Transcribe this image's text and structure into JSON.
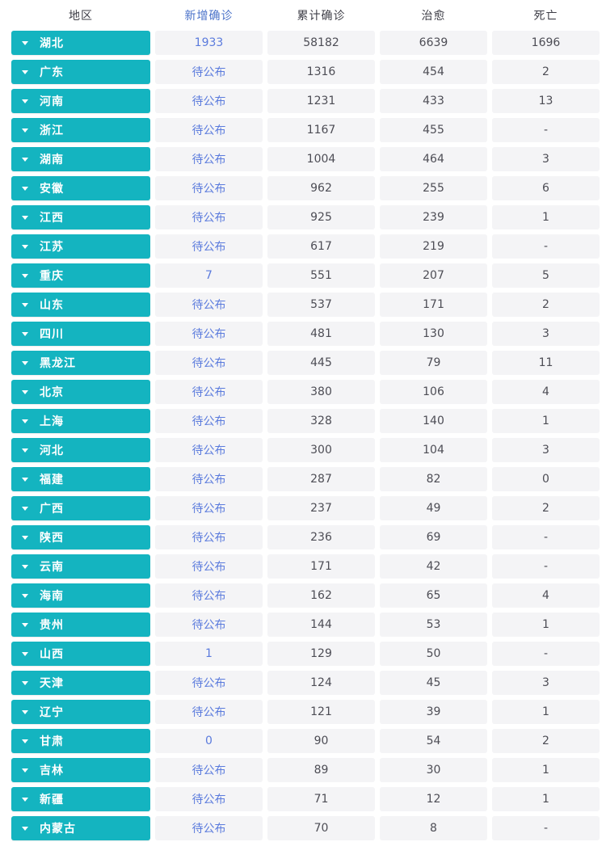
{
  "colors": {
    "region_button_teal": "#14b4c0",
    "cell_background": "#f4f4f6",
    "value_text_gray": "#4d4d55",
    "new_confirmed_blue": "#5b7bdd",
    "active_header_blue": "#4a72c9",
    "header_text": "#3d3d46"
  },
  "table": {
    "columns": [
      {
        "key": "region",
        "label": "地区"
      },
      {
        "key": "new_confirmed",
        "label": "新增确诊"
      },
      {
        "key": "cumulative_confirmed",
        "label": "累计确诊"
      },
      {
        "key": "cured",
        "label": "治愈"
      },
      {
        "key": "deaths",
        "label": "死亡"
      }
    ],
    "pending_label": "待公布",
    "rows": [
      {
        "region": "湖北",
        "new_confirmed": "1933",
        "cumulative_confirmed": "58182",
        "cured": "6639",
        "deaths": "1696"
      },
      {
        "region": "广东",
        "new_confirmed": "待公布",
        "cumulative_confirmed": "1316",
        "cured": "454",
        "deaths": "2"
      },
      {
        "region": "河南",
        "new_confirmed": "待公布",
        "cumulative_confirmed": "1231",
        "cured": "433",
        "deaths": "13"
      },
      {
        "region": "浙江",
        "new_confirmed": "待公布",
        "cumulative_confirmed": "1167",
        "cured": "455",
        "deaths": "-"
      },
      {
        "region": "湖南",
        "new_confirmed": "待公布",
        "cumulative_confirmed": "1004",
        "cured": "464",
        "deaths": "3"
      },
      {
        "region": "安徽",
        "new_confirmed": "待公布",
        "cumulative_confirmed": "962",
        "cured": "255",
        "deaths": "6"
      },
      {
        "region": "江西",
        "new_confirmed": "待公布",
        "cumulative_confirmed": "925",
        "cured": "239",
        "deaths": "1"
      },
      {
        "region": "江苏",
        "new_confirmed": "待公布",
        "cumulative_confirmed": "617",
        "cured": "219",
        "deaths": "-"
      },
      {
        "region": "重庆",
        "new_confirmed": "7",
        "cumulative_confirmed": "551",
        "cured": "207",
        "deaths": "5"
      },
      {
        "region": "山东",
        "new_confirmed": "待公布",
        "cumulative_confirmed": "537",
        "cured": "171",
        "deaths": "2"
      },
      {
        "region": "四川",
        "new_confirmed": "待公布",
        "cumulative_confirmed": "481",
        "cured": "130",
        "deaths": "3"
      },
      {
        "region": "黑龙江",
        "new_confirmed": "待公布",
        "cumulative_confirmed": "445",
        "cured": "79",
        "deaths": "11"
      },
      {
        "region": "北京",
        "new_confirmed": "待公布",
        "cumulative_confirmed": "380",
        "cured": "106",
        "deaths": "4"
      },
      {
        "region": "上海",
        "new_confirmed": "待公布",
        "cumulative_confirmed": "328",
        "cured": "140",
        "deaths": "1"
      },
      {
        "region": "河北",
        "new_confirmed": "待公布",
        "cumulative_confirmed": "300",
        "cured": "104",
        "deaths": "3"
      },
      {
        "region": "福建",
        "new_confirmed": "待公布",
        "cumulative_confirmed": "287",
        "cured": "82",
        "deaths": "0"
      },
      {
        "region": "广西",
        "new_confirmed": "待公布",
        "cumulative_confirmed": "237",
        "cured": "49",
        "deaths": "2"
      },
      {
        "region": "陕西",
        "new_confirmed": "待公布",
        "cumulative_confirmed": "236",
        "cured": "69",
        "deaths": "-"
      },
      {
        "region": "云南",
        "new_confirmed": "待公布",
        "cumulative_confirmed": "171",
        "cured": "42",
        "deaths": "-"
      },
      {
        "region": "海南",
        "new_confirmed": "待公布",
        "cumulative_confirmed": "162",
        "cured": "65",
        "deaths": "4"
      },
      {
        "region": "贵州",
        "new_confirmed": "待公布",
        "cumulative_confirmed": "144",
        "cured": "53",
        "deaths": "1"
      },
      {
        "region": "山西",
        "new_confirmed": "1",
        "cumulative_confirmed": "129",
        "cured": "50",
        "deaths": "-"
      },
      {
        "region": "天津",
        "new_confirmed": "待公布",
        "cumulative_confirmed": "124",
        "cured": "45",
        "deaths": "3"
      },
      {
        "region": "辽宁",
        "new_confirmed": "待公布",
        "cumulative_confirmed": "121",
        "cured": "39",
        "deaths": "1"
      },
      {
        "region": "甘肃",
        "new_confirmed": "0",
        "cumulative_confirmed": "90",
        "cured": "54",
        "deaths": "2"
      },
      {
        "region": "吉林",
        "new_confirmed": "待公布",
        "cumulative_confirmed": "89",
        "cured": "30",
        "deaths": "1"
      },
      {
        "region": "新疆",
        "new_confirmed": "待公布",
        "cumulative_confirmed": "71",
        "cured": "12",
        "deaths": "1"
      },
      {
        "region": "内蒙古",
        "new_confirmed": "待公布",
        "cumulative_confirmed": "70",
        "cured": "8",
        "deaths": "-"
      }
    ]
  }
}
